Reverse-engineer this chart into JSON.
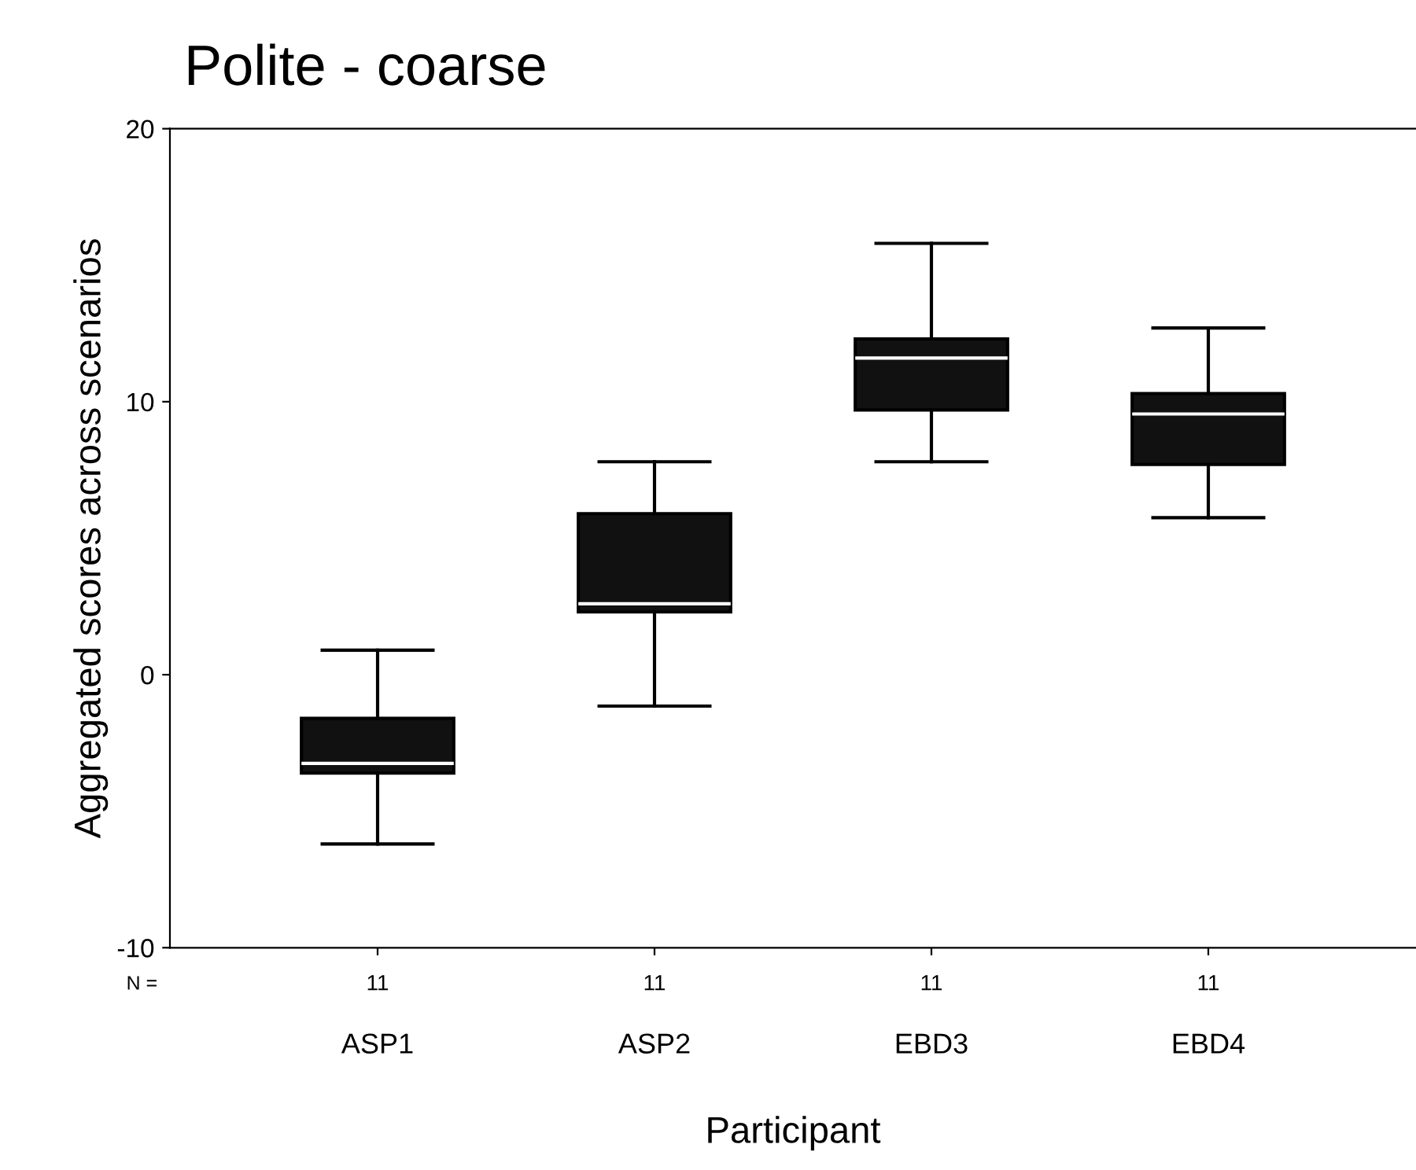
{
  "chart_data": {
    "type": "box",
    "title": "Polite - coarse",
    "xlabel": "Participant",
    "ylabel": "Aggregated scores across scenarios",
    "categories": [
      "ASP1",
      "ASP2",
      "EBD3",
      "EBD4"
    ],
    "boxes": [
      {
        "low": -6.2,
        "q1": -3.6,
        "median": -3.25,
        "q3": -1.6,
        "high": 0.9
      },
      {
        "low": -1.15,
        "q1": 2.3,
        "median": 2.6,
        "q3": 5.9,
        "high": 7.8
      },
      {
        "low": 7.8,
        "q1": 9.7,
        "median": 11.6,
        "q3": 12.3,
        "high": 15.8
      },
      {
        "low": 5.75,
        "q1": 7.7,
        "median": 9.55,
        "q3": 10.3,
        "high": 12.7
      }
    ],
    "color": "#111111",
    "annotations": [
      "N =",
      {
        "text": "11",
        "x": "ASP1"
      },
      {
        "text": "11",
        "x": "ASP2"
      },
      {
        "text": "11",
        "x": "EBD3"
      },
      {
        "text": "11",
        "x": "EBD4"
      }
    ],
    "ylim": [
      -10,
      20
    ],
    "yticks": [
      -10,
      0,
      10,
      20
    ],
    "grid": false,
    "legend": false
  }
}
